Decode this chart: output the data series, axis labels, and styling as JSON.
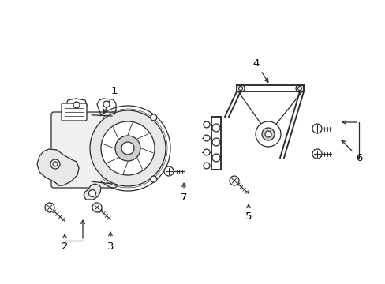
{
  "bg_color": "#ffffff",
  "line_color": "#2a2a2a",
  "line_width": 0.9,
  "fig_width": 4.89,
  "fig_height": 3.6,
  "dpi": 100,
  "label_fontsize": 9.5,
  "arrow_color": "#2a2a2a",
  "gray_color": "#888888"
}
